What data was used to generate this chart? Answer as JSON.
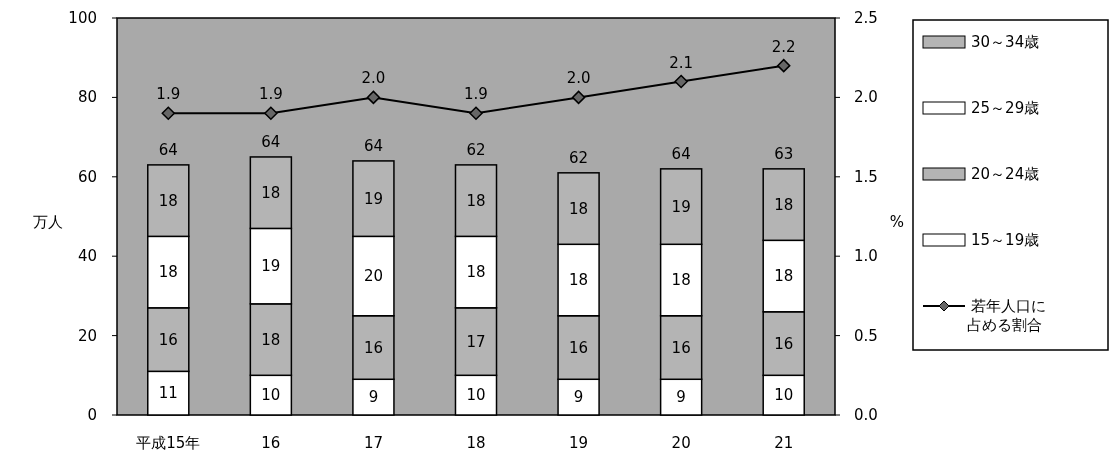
{
  "chart_data": {
    "type": "bar",
    "stacked": true,
    "ylabel": "万人",
    "y2label": "%",
    "categories": [
      "平成15年",
      "16",
      "17",
      "18",
      "19",
      "20",
      "21"
    ],
    "series": [
      {
        "name": "15～19歳",
        "color": "#ffffff",
        "values": [
          11,
          10,
          9,
          10,
          9,
          9,
          10
        ]
      },
      {
        "name": "20～24歳",
        "color": "#b4b4b4",
        "values": [
          16,
          18,
          16,
          17,
          16,
          16,
          16
        ]
      },
      {
        "name": "25～29歳",
        "color": "#ffffff",
        "values": [
          18,
          19,
          20,
          18,
          18,
          18,
          18
        ]
      },
      {
        "name": "30～34歳",
        "color": "#b4b4b4",
        "values": [
          18,
          18,
          19,
          18,
          18,
          19,
          18
        ]
      },
      {
        "name": "若年人口に占める割合",
        "type": "line",
        "axis": "y2",
        "color": "#000000",
        "marker": "diamond",
        "values": [
          1.9,
          1.9,
          2.0,
          1.9,
          2.0,
          2.1,
          2.2
        ],
        "value_labels": [
          "1.9",
          "1.9",
          "2.0",
          "1.9",
          "2.0",
          "2.1",
          "2.2"
        ]
      }
    ],
    "totals": [
      "64",
      "64",
      "64",
      "62",
      "62",
      "64",
      "63"
    ],
    "data_labels": true,
    "ylim": [
      0,
      100
    ],
    "yticks": [
      0,
      20,
      40,
      60,
      80,
      100
    ],
    "y2lim": [
      0,
      2.5
    ],
    "y2ticks": [
      {
        "value": 0,
        "label": "0.0"
      },
      {
        "value": 0.5,
        "label": "0.5"
      },
      {
        "value": 1,
        "label": "1.0"
      },
      {
        "value": 1.5,
        "label": "1.5"
      },
      {
        "value": 2,
        "label": "2.0"
      },
      {
        "value": 2.5,
        "label": "2.5"
      }
    ],
    "grid": false,
    "legend": "right"
  }
}
